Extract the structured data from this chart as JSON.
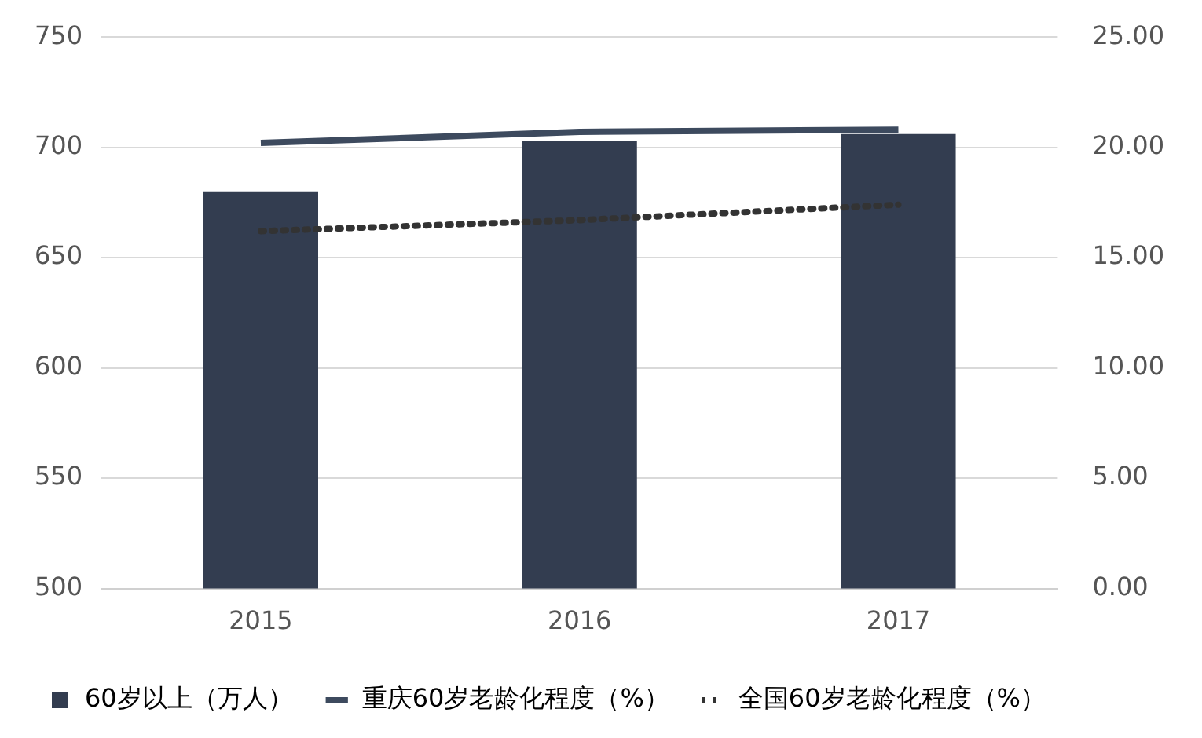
{
  "chart_data": {
    "type": "bar",
    "categories": [
      "2015",
      "2016",
      "2017"
    ],
    "series": [
      {
        "name": "60岁以上（万人）",
        "color": "#333d50",
        "values": [
          680,
          703,
          706
        ]
      },
      {
        "name": "重庆60岁老龄化程度（%）",
        "type": "line",
        "axis": "y2",
        "color": "#3d4a5e",
        "line_style": "solid",
        "values": [
          20.2,
          20.7,
          20.8
        ]
      },
      {
        "name": "全国60岁老龄化程度（%）",
        "type": "line",
        "axis": "y2",
        "color": "#333333",
        "line_style": "dotted",
        "values": [
          16.2,
          16.7,
          17.4
        ]
      }
    ],
    "ylim": [
      500,
      750
    ],
    "yticks": [
      500,
      550,
      600,
      650,
      700,
      750
    ],
    "y2lim": [
      0,
      25
    ],
    "y2ticks": [
      {
        "value": 0,
        "label": "0.00"
      },
      {
        "value": 5,
        "label": "5.00"
      },
      {
        "value": 10,
        "label": "10.00"
      },
      {
        "value": 15,
        "label": "15.00"
      },
      {
        "value": 20,
        "label": "20.00"
      },
      {
        "value": 25,
        "label": "25.00"
      }
    ],
    "grid": "y",
    "legend": "bottom",
    "marker": "none"
  }
}
